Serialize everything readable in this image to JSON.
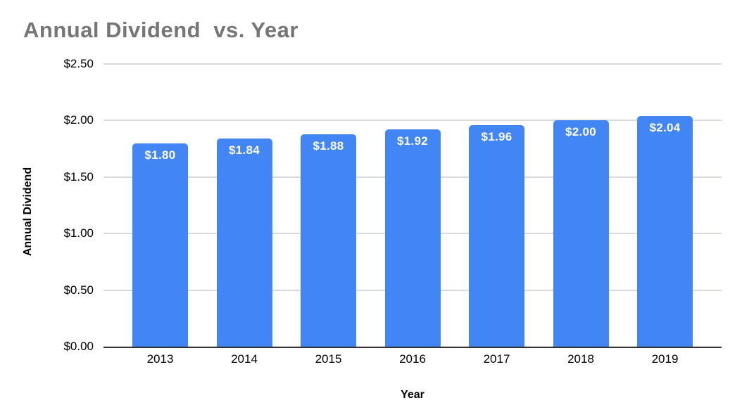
{
  "chart_data": {
    "type": "bar",
    "title": "Annual Dividend  vs. Year",
    "xlabel": "Year",
    "ylabel": "Annual Dividend",
    "categories": [
      "2013",
      "2014",
      "2015",
      "2016",
      "2017",
      "2018",
      "2019"
    ],
    "series": [
      {
        "name": "Annual Dividend",
        "values": [
          1.8,
          1.84,
          1.88,
          1.92,
          1.96,
          2.0,
          2.04
        ],
        "data_labels": [
          "$1.80",
          "$1.84",
          "$1.88",
          "$1.92",
          "$1.96",
          "$2.00",
          "$2.04"
        ]
      }
    ],
    "y_ticks": [
      {
        "value": 2.5,
        "label": "$2.50"
      },
      {
        "value": 2.0,
        "label": "$2.00"
      },
      {
        "value": 1.5,
        "label": "$1.50"
      },
      {
        "value": 1.0,
        "label": "$1.00"
      },
      {
        "value": 0.5,
        "label": "$0.50"
      },
      {
        "value": 0.0,
        "label": "$0.00"
      }
    ],
    "ylim": [
      0,
      2.5
    ],
    "grid": "horizontal",
    "legend": "none",
    "colors": {
      "bar": "#4285f4",
      "data_label": "#ffffff",
      "title": "#767676",
      "axis_text": "#000000",
      "gridline": "#d9d9d9",
      "baseline": "#333333",
      "background": "#ffffff"
    }
  }
}
